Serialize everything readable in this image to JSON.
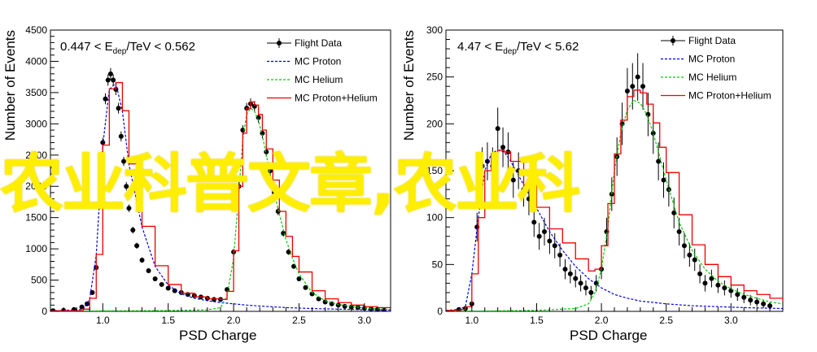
{
  "watermark": "农业科普文章,农业科",
  "chart_data": [
    {
      "type": "line",
      "energy_range": {
        "prefix": "0.447 < E",
        "subscript": "dep",
        "suffix": "/TeV < 0.562"
      },
      "xlabel": "PSD Charge",
      "ylabel": "Number of Events",
      "xlim": [
        0.6,
        3.2
      ],
      "ylim": [
        0,
        4500
      ],
      "x_ticks": [
        1.0,
        1.5,
        2.0,
        2.5,
        3.0
      ],
      "x_tick_labels": [
        "1.0",
        "1.5",
        "2.0",
        "2.5",
        "3.0"
      ],
      "y_ticks": [
        0,
        500,
        1000,
        1500,
        2000,
        2500,
        3000,
        3500,
        4000,
        4500
      ],
      "y_tick_labels": [
        "0",
        "500",
        "1000",
        "1500",
        "2000",
        "2500",
        "3000",
        "3500",
        "4000",
        "4500"
      ],
      "legend_position": "top-right",
      "legend": [
        "Flight Data",
        "MC Proton",
        "MC Helium",
        "MC Proton+Helium"
      ],
      "series": [
        {
          "name": "Flight Data",
          "style": "markers-with-errors",
          "color": "#000000",
          "x": [
            0.62,
            0.7,
            0.78,
            0.84,
            0.88,
            0.92,
            0.95,
            0.98,
            1.0,
            1.02,
            1.04,
            1.06,
            1.08,
            1.1,
            1.12,
            1.14,
            1.16,
            1.18,
            1.2,
            1.23,
            1.26,
            1.3,
            1.35,
            1.4,
            1.45,
            1.5,
            1.55,
            1.6,
            1.65,
            1.7,
            1.75,
            1.8,
            1.85,
            1.9,
            1.95,
            2.0,
            2.04,
            2.07,
            2.1,
            2.13,
            2.16,
            2.19,
            2.22,
            2.25,
            2.28,
            2.31,
            2.34,
            2.38,
            2.42,
            2.46,
            2.5,
            2.55,
            2.6,
            2.65,
            2.7,
            2.75,
            2.8,
            2.85,
            2.9,
            2.95,
            3.0,
            3.05,
            3.1,
            3.15
          ],
          "y": [
            10,
            15,
            30,
            70,
            120,
            300,
            700,
            1700,
            2700,
            3400,
            3700,
            3800,
            3700,
            3550,
            3250,
            2800,
            2400,
            2000,
            1650,
            1300,
            1050,
            820,
            650,
            520,
            430,
            370,
            330,
            300,
            270,
            250,
            230,
            210,
            190,
            190,
            350,
            950,
            2000,
            2900,
            3250,
            3320,
            3280,
            3100,
            2850,
            2550,
            2250,
            1900,
            1600,
            1250,
            950,
            720,
            520,
            380,
            280,
            200,
            150,
            120,
            100,
            80,
            70,
            60,
            50,
            40,
            30,
            20
          ]
        },
        {
          "name": "MC Proton",
          "style": "dashed",
          "color": "#0000dd",
          "x": [
            0.6,
            0.85,
            0.9,
            0.95,
            1.0,
            1.05,
            1.1,
            1.15,
            1.2,
            1.3,
            1.4,
            1.5,
            1.6,
            1.7,
            1.8,
            1.9,
            2.0,
            2.1,
            2.2,
            2.4,
            2.6,
            2.8,
            3.0,
            3.2
          ],
          "y": [
            5,
            30,
            200,
            900,
            2650,
            3550,
            3650,
            3200,
            2350,
            1350,
            720,
            420,
            280,
            210,
            170,
            140,
            120,
            100,
            85,
            60,
            45,
            35,
            25,
            20
          ]
        },
        {
          "name": "MC Helium",
          "style": "dashed",
          "color": "#00cc00",
          "x": [
            0.6,
            1.0,
            1.5,
            1.8,
            1.9,
            1.95,
            2.0,
            2.04,
            2.07,
            2.1,
            2.13,
            2.16,
            2.19,
            2.22,
            2.25,
            2.3,
            2.35,
            2.4,
            2.45,
            2.5,
            2.6,
            2.7,
            2.8,
            2.9,
            3.0,
            3.1,
            3.2
          ],
          "y": [
            5,
            8,
            12,
            25,
            60,
            250,
            850,
            1900,
            2750,
            3150,
            3250,
            3200,
            3050,
            2800,
            2500,
            2000,
            1550,
            1150,
            850,
            600,
            300,
            170,
            110,
            80,
            55,
            40,
            30
          ]
        },
        {
          "name": "MC Proton+Helium",
          "style": "step",
          "color": "#ee0000",
          "x": [
            0.6,
            0.85,
            0.9,
            0.95,
            1.0,
            1.05,
            1.1,
            1.15,
            1.2,
            1.3,
            1.4,
            1.5,
            1.6,
            1.7,
            1.8,
            1.9,
            1.95,
            2.0,
            2.04,
            2.07,
            2.1,
            2.13,
            2.16,
            2.19,
            2.22,
            2.25,
            2.3,
            2.35,
            2.4,
            2.45,
            2.5,
            2.6,
            2.7,
            2.8,
            2.9,
            3.0,
            3.1,
            3.2
          ],
          "y": [
            10,
            35,
            210,
            910,
            2660,
            3560,
            3660,
            3210,
            2360,
            1360,
            730,
            430,
            290,
            230,
            200,
            190,
            320,
            970,
            2000,
            2850,
            3250,
            3350,
            3300,
            3150,
            2900,
            2600,
            2100,
            1600,
            1200,
            880,
            630,
            330,
            200,
            140,
            100,
            75,
            60,
            45
          ]
        }
      ]
    },
    {
      "type": "line",
      "energy_range": {
        "prefix": "4.47 < E",
        "subscript": "dep",
        "suffix": "/TeV < 5.62"
      },
      "xlabel": "PSD Charge",
      "ylabel": "Number of Events",
      "xlim": [
        0.8,
        3.4
      ],
      "ylim": [
        0,
        300
      ],
      "x_ticks": [
        1.0,
        1.5,
        2.0,
        2.5,
        3.0
      ],
      "x_tick_labels": [
        "1.0",
        "1.5",
        "2.0",
        "2.5",
        "3.0"
      ],
      "y_ticks": [
        0,
        50,
        100,
        150,
        200,
        250,
        300
      ],
      "y_tick_labels": [
        "0",
        "50",
        "100",
        "150",
        "200",
        "250",
        "300"
      ],
      "legend_position": "top-right",
      "legend": [
        "Flight Data",
        "MC Proton",
        "MC Helium",
        "MC Proton+Helium"
      ],
      "series": [
        {
          "name": "Flight Data",
          "style": "markers-with-errors",
          "color": "#000000",
          "x": [
            0.9,
            0.95,
            1.0,
            1.04,
            1.08,
            1.12,
            1.16,
            1.2,
            1.24,
            1.28,
            1.32,
            1.36,
            1.4,
            1.44,
            1.48,
            1.52,
            1.56,
            1.6,
            1.64,
            1.68,
            1.72,
            1.76,
            1.8,
            1.84,
            1.88,
            1.92,
            1.96,
            2.0,
            2.04,
            2.08,
            2.12,
            2.16,
            2.2,
            2.24,
            2.28,
            2.32,
            2.36,
            2.4,
            2.44,
            2.48,
            2.52,
            2.56,
            2.6,
            2.64,
            2.68,
            2.72,
            2.76,
            2.8,
            2.85,
            2.9,
            2.95,
            3.0,
            3.05,
            3.1,
            3.15,
            3.2,
            3.25,
            3.3
          ],
          "y": [
            2,
            3,
            8,
            90,
            155,
            160,
            155,
            195,
            175,
            170,
            140,
            150,
            130,
            120,
            95,
            80,
            85,
            75,
            70,
            60,
            45,
            40,
            35,
            30,
            25,
            20,
            30,
            45,
            85,
            125,
            165,
            200,
            235,
            240,
            250,
            240,
            210,
            190,
            160,
            140,
            130,
            105,
            85,
            70,
            60,
            55,
            40,
            30,
            35,
            28,
            25,
            22,
            18,
            15,
            12,
            10,
            8,
            6
          ]
        },
        {
          "name": "MC Proton",
          "style": "dashed",
          "color": "#0000dd",
          "x": [
            0.8,
            0.9,
            0.95,
            1.0,
            1.05,
            1.1,
            1.15,
            1.2,
            1.25,
            1.3,
            1.4,
            1.5,
            1.6,
            1.7,
            1.8,
            1.9,
            2.0,
            2.1,
            2.2,
            2.3,
            2.5,
            2.7,
            2.9,
            3.1,
            3.4
          ],
          "y": [
            1,
            2,
            5,
            40,
            100,
            150,
            168,
            172,
            170,
            160,
            135,
            110,
            85,
            65,
            48,
            35,
            25,
            18,
            14,
            11,
            8,
            6,
            5,
            4,
            3
          ]
        },
        {
          "name": "MC Helium",
          "style": "dashed",
          "color": "#00cc00",
          "x": [
            0.8,
            1.5,
            1.8,
            1.9,
            1.95,
            2.0,
            2.05,
            2.1,
            2.15,
            2.2,
            2.25,
            2.3,
            2.35,
            2.4,
            2.45,
            2.5,
            2.6,
            2.7,
            2.8,
            2.9,
            3.0,
            3.1,
            3.2,
            3.3,
            3.4
          ],
          "y": [
            0,
            1,
            3,
            8,
            20,
            45,
            90,
            150,
            190,
            215,
            225,
            222,
            210,
            190,
            165,
            140,
            95,
            65,
            45,
            32,
            24,
            18,
            14,
            10,
            8
          ]
        },
        {
          "name": "MC Proton+Helium",
          "style": "step",
          "color": "#ee0000",
          "x": [
            0.8,
            0.9,
            0.95,
            1.0,
            1.05,
            1.1,
            1.15,
            1.2,
            1.25,
            1.3,
            1.4,
            1.5,
            1.6,
            1.7,
            1.8,
            1.9,
            1.95,
            2.0,
            2.05,
            2.1,
            2.15,
            2.2,
            2.25,
            2.3,
            2.35,
            2.4,
            2.45,
            2.5,
            2.6,
            2.7,
            2.8,
            2.9,
            3.0,
            3.1,
            3.2,
            3.3,
            3.4
          ],
          "y": [
            1,
            2,
            5,
            40,
            100,
            150,
            168,
            172,
            170,
            160,
            135,
            111,
            88,
            73,
            56,
            43,
            45,
            70,
            115,
            168,
            204,
            229,
            236,
            233,
            221,
            201,
            175,
            148,
            103,
            71,
            50,
            37,
            28,
            22,
            18,
            14,
            11
          ]
        }
      ]
    }
  ]
}
